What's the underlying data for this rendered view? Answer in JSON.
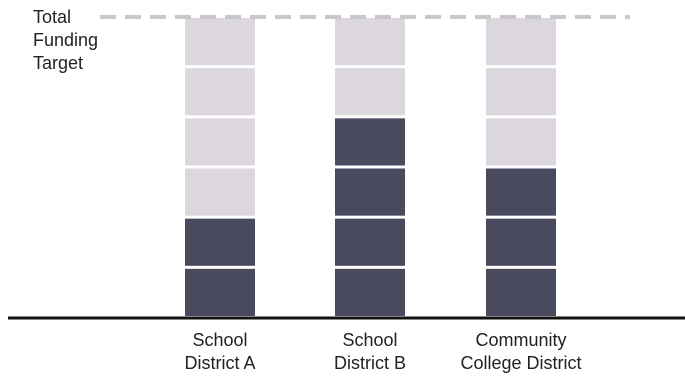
{
  "chart_data": {
    "type": "bar",
    "stacked": true,
    "segments_per_bar": 6,
    "target_label_lines": [
      "Total",
      "Funding",
      "Target"
    ],
    "categories": [
      {
        "lines": [
          "School",
          "District A"
        ],
        "filled": 2
      },
      {
        "lines": [
          "School",
          "District B"
        ],
        "filled": 4
      },
      {
        "lines": [
          "Community",
          "College District"
        ],
        "filled": 3
      }
    ],
    "colors": {
      "filled": "#4a4a5e",
      "unfilled": "#dcd6df",
      "target_line": "#c8c8c8",
      "baseline": "#111111"
    }
  }
}
